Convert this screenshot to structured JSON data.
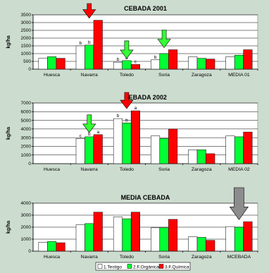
{
  "colors": {
    "background": "#ccdccf",
    "testigo": "#ffffff",
    "organica": "#00ff33",
    "quimica": "#ff0000",
    "arrow_green": "#33ff33",
    "arrow_red": "#ff0000",
    "arrow_gray": "#8c8c8c"
  },
  "legend": [
    {
      "key": "testigo",
      "label": "1.Testigo"
    },
    {
      "key": "organica",
      "label": "2.F.Orgánica"
    },
    {
      "key": "quimica",
      "label": "3.F.Química"
    }
  ],
  "chart_data": [
    {
      "type": "bar",
      "title": "CEBADA 2001",
      "ylabel": "kg/ha",
      "ylim": [
        0,
        3500
      ],
      "yticks": [
        0,
        500,
        1000,
        1500,
        2000,
        2500,
        3000,
        3500
      ],
      "categories": [
        "Huesca",
        "Navarra",
        "Toledo",
        "Soria",
        "Zaragoza",
        "MEDIA 01"
      ],
      "series": [
        {
          "key": "testigo",
          "values": [
            700,
            1500,
            450,
            600,
            800,
            800
          ]
        },
        {
          "key": "organica",
          "values": [
            800,
            1550,
            550,
            1000,
            700,
            900
          ]
        },
        {
          "key": "quimica",
          "values": [
            700,
            3150,
            300,
            1250,
            650,
            1250
          ]
        }
      ],
      "annotations": [
        {
          "category": 1,
          "series": 0,
          "text": "b"
        },
        {
          "category": 1,
          "series": 1,
          "text": "b"
        },
        {
          "category": 2,
          "series": 0,
          "text": "b"
        },
        {
          "category": 2,
          "series": 1,
          "text": "b"
        },
        {
          "category": 2,
          "series": 2,
          "text": "c"
        },
        {
          "category": 3,
          "series": 0,
          "text": "b"
        }
      ],
      "arrows": [
        {
          "category": 1,
          "color": "arrow_red"
        },
        {
          "category": 2,
          "color": "arrow_green"
        },
        {
          "category": 3,
          "color": "arrow_green"
        }
      ]
    },
    {
      "type": "bar",
      "title": "CEBADA 2002",
      "ylabel": "kg/ha",
      "ylim": [
        0,
        7000
      ],
      "yticks": [
        0,
        1000,
        2000,
        3000,
        4000,
        5000,
        6000,
        7000
      ],
      "categories": [
        "Huesca",
        "Navarra",
        "Toledo",
        "Soria",
        "Zaragoza",
        "MEDIA 02"
      ],
      "series": [
        {
          "key": "testigo",
          "values": [
            0,
            2900,
            5200,
            3200,
            1600,
            3200
          ]
        },
        {
          "key": "organica",
          "values": [
            0,
            3100,
            4700,
            2900,
            1600,
            3100
          ]
        },
        {
          "key": "quimica",
          "values": [
            0,
            3350,
            6100,
            4000,
            1150,
            3650
          ]
        }
      ],
      "annotations": [
        {
          "category": 1,
          "series": 0,
          "text": "c"
        },
        {
          "category": 1,
          "series": 1,
          "text": "b"
        },
        {
          "category": 1,
          "series": 2,
          "text": "a"
        },
        {
          "category": 2,
          "series": 0,
          "text": "b"
        },
        {
          "category": 2,
          "series": 1,
          "text": "b"
        },
        {
          "category": 2,
          "series": 2,
          "text": "a"
        }
      ],
      "arrows": [
        {
          "category": 1,
          "color": "arrow_green"
        },
        {
          "category": 2,
          "color": "arrow_red"
        }
      ]
    },
    {
      "type": "bar",
      "title": "MEDIA CEBADA",
      "ylabel": "kg/ha",
      "ylim": [
        0,
        4000
      ],
      "yticks": [
        0,
        1000,
        2000,
        3000,
        4000
      ],
      "categories": [
        "Huesca",
        "Navarra",
        "Toledo",
        "Soria",
        "Zaragoza",
        "MCEBADA"
      ],
      "series": [
        {
          "key": "testigo",
          "values": [
            750,
            2200,
            2850,
            1950,
            1200,
            2050
          ]
        },
        {
          "key": "organica",
          "values": [
            800,
            2300,
            2700,
            1950,
            1150,
            2000
          ]
        },
        {
          "key": "quimica",
          "values": [
            700,
            3250,
            3250,
            2650,
            900,
            2450
          ]
        }
      ],
      "annotations": [],
      "arrows": [
        {
          "category": 5,
          "color": "arrow_gray"
        }
      ]
    }
  ]
}
